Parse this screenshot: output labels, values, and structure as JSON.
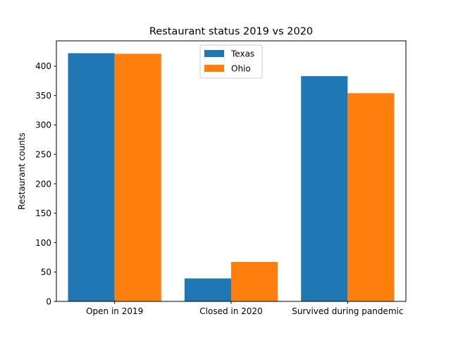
{
  "chart_data": {
    "type": "bar",
    "title": "Restaurant status 2019 vs 2020",
    "xlabel": "",
    "ylabel": "Restaurant counts",
    "categories": [
      "Open in 2019",
      "Closed in 2020",
      "Survived during pandemic"
    ],
    "series": [
      {
        "name": "Texas",
        "color": "#1f77b4",
        "values": [
          422,
          39,
          383
        ]
      },
      {
        "name": "Ohio",
        "color": "#ff7f0e",
        "values": [
          421,
          67,
          354
        ]
      }
    ],
    "ylim": [
      0,
      443
    ],
    "yticks": [
      0,
      50,
      100,
      150,
      200,
      250,
      300,
      350,
      400
    ],
    "grid": false,
    "legend": "upper center"
  }
}
